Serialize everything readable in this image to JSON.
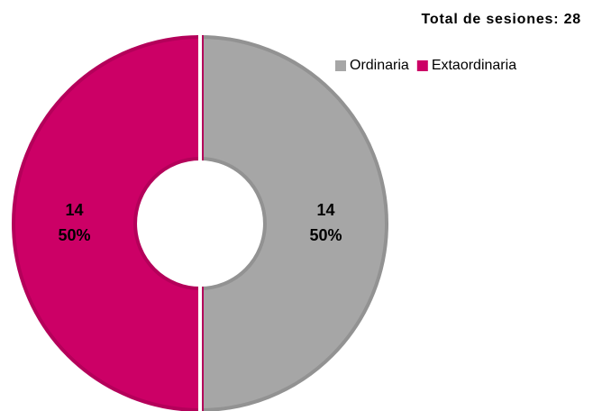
{
  "chart_data": {
    "type": "donut",
    "title": "Total de sesiones: 28",
    "categories": [
      "Ordinaria",
      "Extaordinaria"
    ],
    "values": [
      14,
      14
    ],
    "percent_labels": [
      "50%",
      "50%"
    ],
    "colors": [
      "#a6a6a6",
      "#cc0066"
    ],
    "legend": "top-right"
  }
}
